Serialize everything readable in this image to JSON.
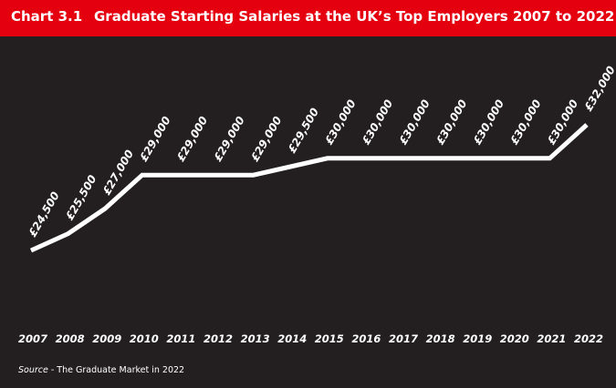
{
  "header": {
    "chart_number": "Chart 3.1",
    "title": "Graduate Starting Salaries at the UK’s Top Employers 2007 to 2022"
  },
  "source": {
    "label": "Source",
    "text": " - The Graduate Market in 2022"
  },
  "colors": {
    "background": "#231f20",
    "header": "#e4000f",
    "line": "#ffffff",
    "text": "#ffffff"
  },
  "chart_data": {
    "type": "line",
    "title": "Graduate Starting Salaries at the UK’s Top Employers 2007 to 2022",
    "xlabel": "",
    "ylabel": "",
    "categories": [
      "2007",
      "2008",
      "2009",
      "2010",
      "2011",
      "2012",
      "2013",
      "2014",
      "2015",
      "2016",
      "2017",
      "2018",
      "2019",
      "2020",
      "2021",
      "2022"
    ],
    "series": [
      {
        "values": [
          24500,
          25500,
          27000,
          29000,
          29000,
          29000,
          29000,
          29500,
          30000,
          30000,
          30000,
          30000,
          30000,
          30000,
          30000,
          32000
        ],
        "data_labels": [
          "£24,500",
          "£25,500",
          "£27,000",
          "£29,000",
          "£29,000",
          "£29,000",
          "£29,000",
          "£29,500",
          "£30,000",
          "£30,000",
          "£30,000",
          "£30,000",
          "£30,000",
          "£30,000",
          "£30,000",
          "£32,000"
        ]
      }
    ],
    "grid": false,
    "legend": "none"
  }
}
